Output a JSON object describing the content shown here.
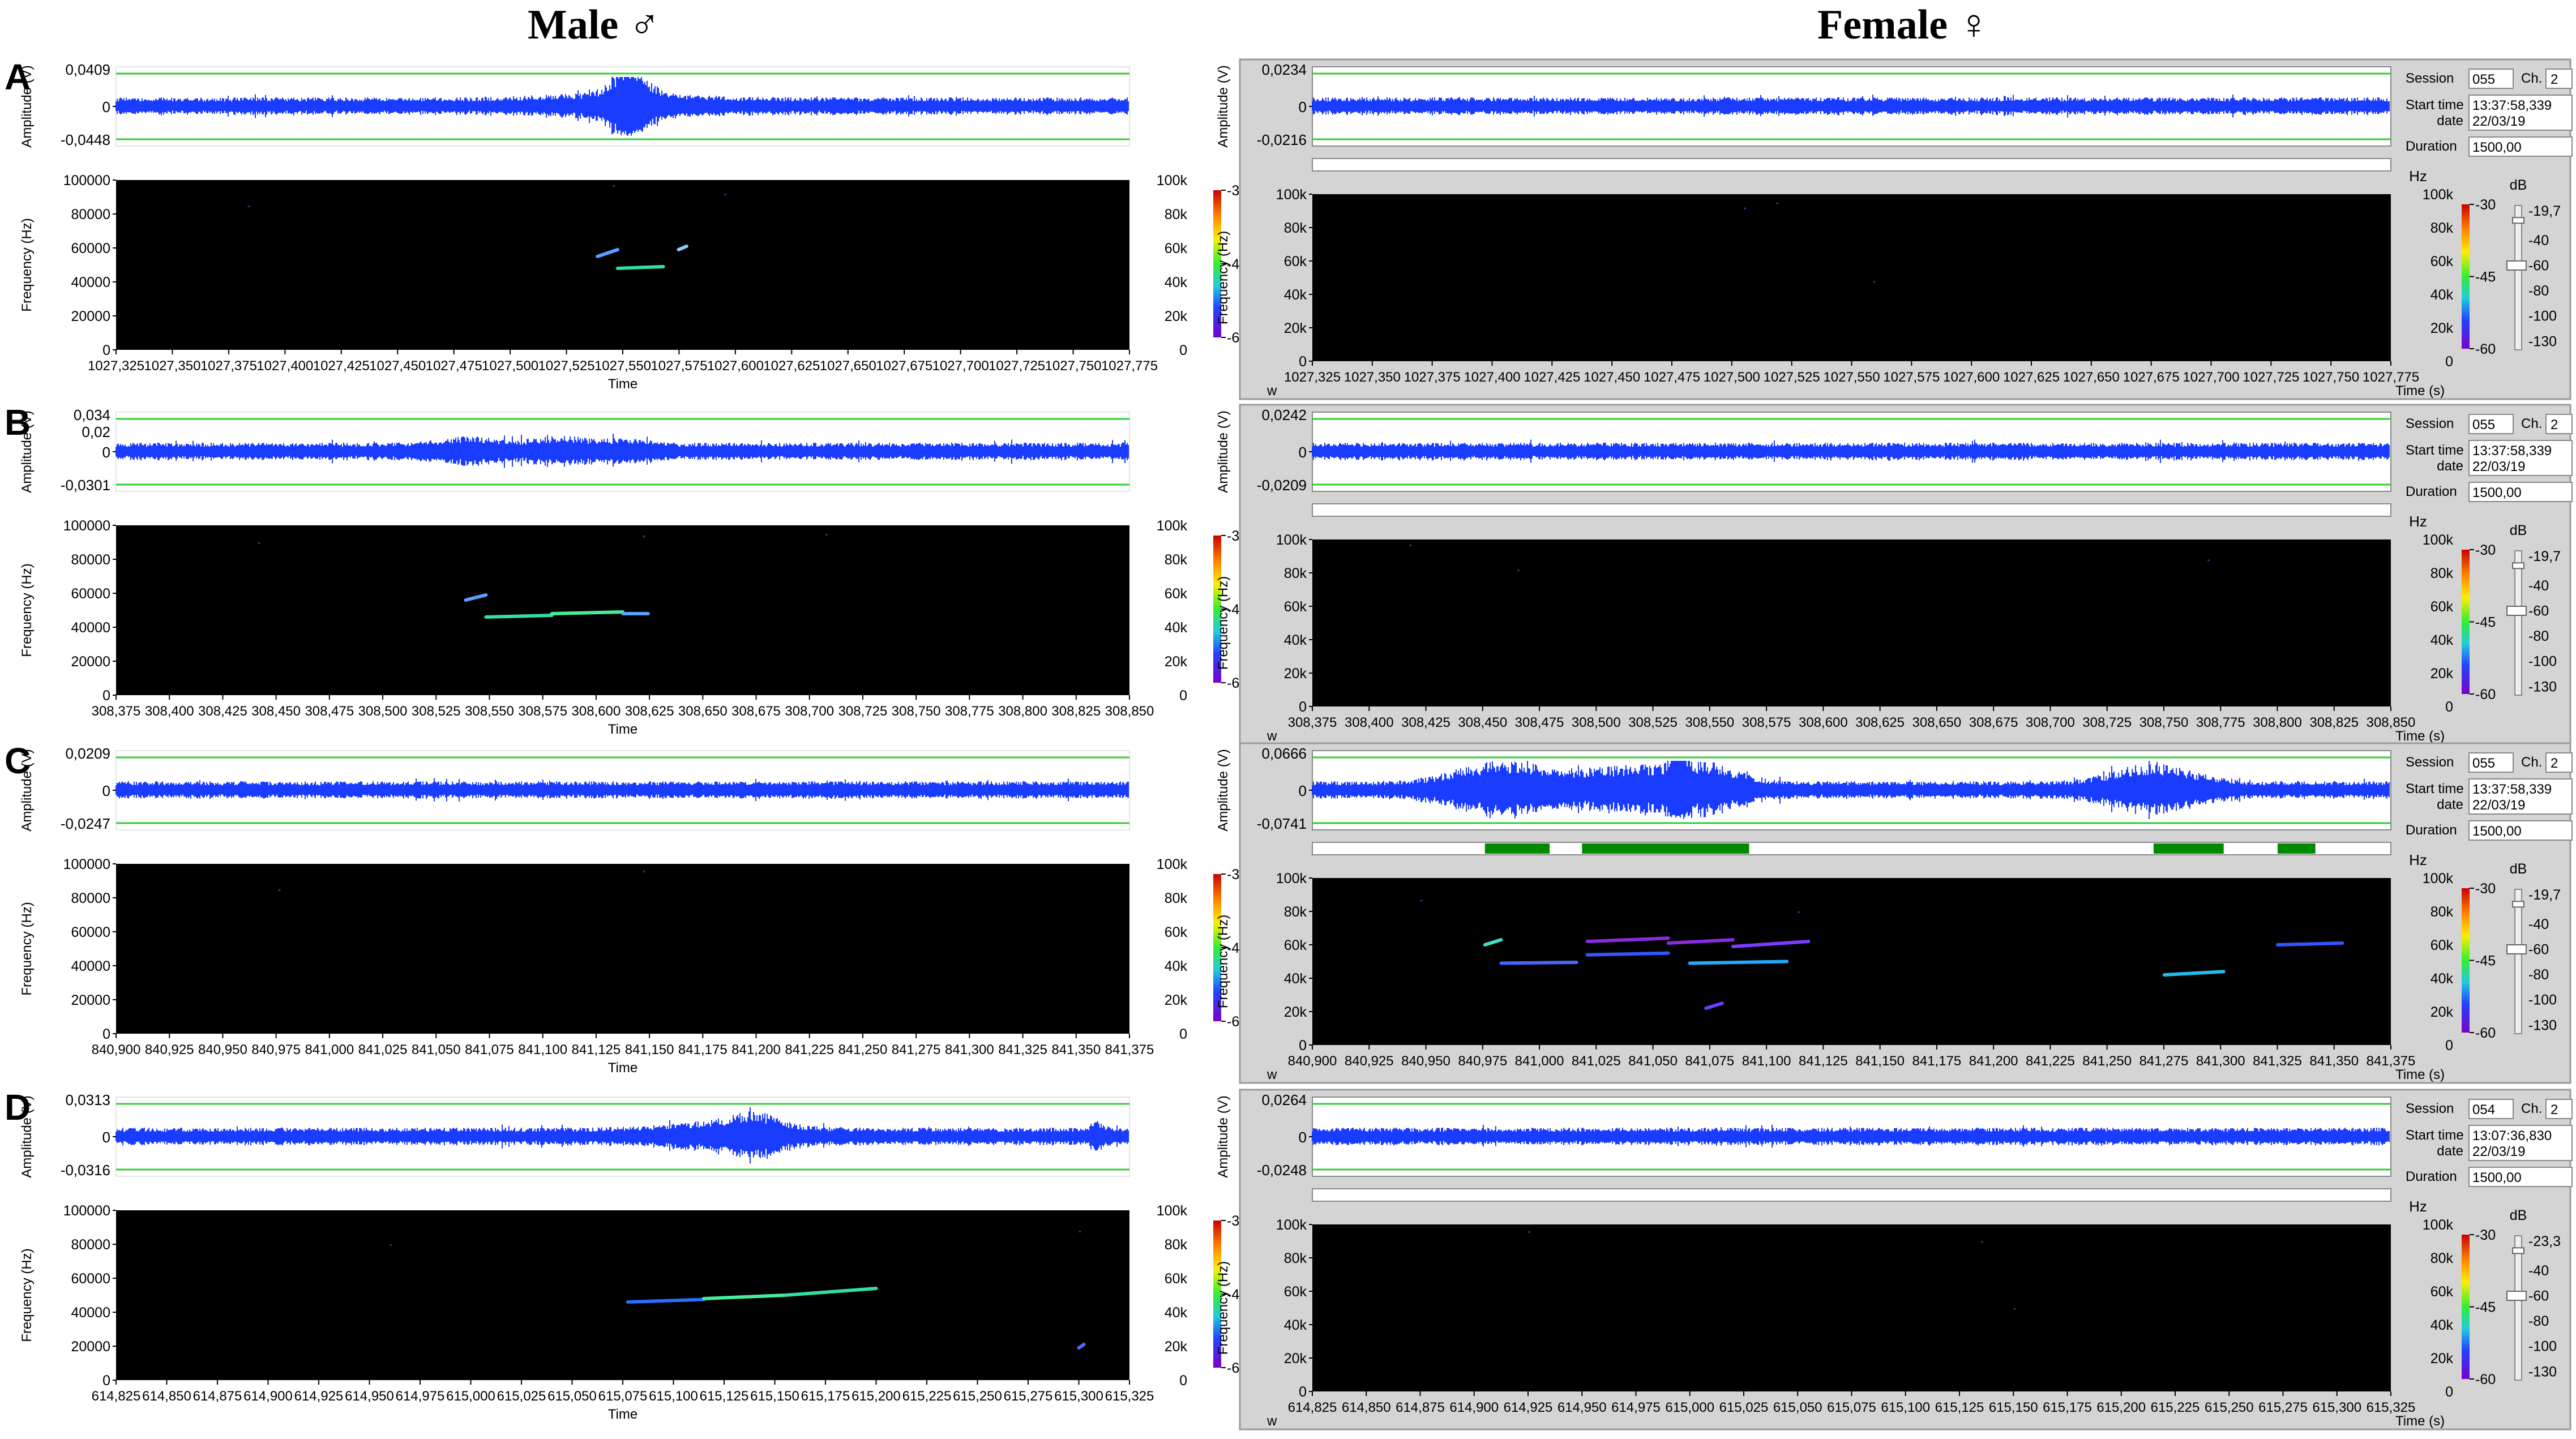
{
  "headers": {
    "male": "Male ♂",
    "female": "Female ♀"
  },
  "labels": {
    "amplitude": "Amplitude (V)",
    "frequency": "Frequency (Hz)",
    "time_male": "Time",
    "time_female": "Time (s)",
    "hz": "Hz",
    "db": "dB",
    "w": "w",
    "session": "Session",
    "ch": "Ch.",
    "start_time": "Start time",
    "date": "date",
    "duration": "Duration"
  },
  "colors": {
    "waveform": "#1a3cff",
    "threshold": "#33cc33",
    "spectrogram_bg": "#000000",
    "detection": "#008a00",
    "panel_bg": "#d4d4d4"
  },
  "rows": [
    {
      "letter": "A",
      "male": {
        "amp_top": "0,0409",
        "amp_bottom": "-0,0448",
        "wave_bursts": [
          [
            0.5,
            0.13,
            1.6
          ],
          [
            0.507,
            0.03,
            4.5
          ]
        ],
        "time_ticks": [
          "1027,325",
          "1027,350",
          "1027,375",
          "1027,400",
          "1027,425",
          "1027,450",
          "1027,475",
          "1027,500",
          "1027,525",
          "1027,550",
          "1027,575",
          "1027,600",
          "1027,625",
          "1027,650",
          "1027,675",
          "1027,700",
          "1027,725",
          "1027,750",
          "1027,775"
        ],
        "calls": [
          {
            "t": [
              0.475,
              0.495
            ],
            "f": [
              55000,
              59000
            ],
            "c": "#5aa0ff"
          },
          {
            "t": [
              0.495,
              0.54
            ],
            "f": [
              48000,
              49000
            ],
            "c": "#33ddaa"
          },
          {
            "t": [
              0.555,
              0.563
            ],
            "f": [
              59000,
              61000
            ],
            "c": "#88ccff"
          }
        ],
        "noise": [
          [
            0.13,
            85000
          ],
          [
            0.49,
            97000
          ],
          [
            0.6,
            92000
          ]
        ]
      },
      "female": {
        "amp_top": "0,0234",
        "amp_bottom": "-0,0216",
        "session": "055",
        "channel": "2",
        "start_time": "13:37:58,339",
        "date": "22/03/19",
        "duration": "1500,00",
        "db_top": "-19,7",
        "wave_bursts": [],
        "detections": [],
        "time_ticks": [
          "1027,325",
          "1027,350",
          "1027,375",
          "1027,400",
          "1027,425",
          "1027,450",
          "1027,475",
          "1027,500",
          "1027,525",
          "1027,550",
          "1027,575",
          "1027,600",
          "1027,625",
          "1027,650",
          "1027,675",
          "1027,700",
          "1027,725",
          "1027,750",
          "1027,775"
        ],
        "calls": [],
        "noise": [
          [
            0.4,
            92000
          ],
          [
            0.52,
            48000
          ],
          [
            0.43,
            95000
          ]
        ]
      }
    },
    {
      "letter": "B",
      "male": {
        "amp_top": "0,034",
        "amp_mid": "0,02",
        "amp_bottom": "-0,0301",
        "wave_bursts": [
          [
            0.35,
            0.06,
            1.7
          ],
          [
            0.44,
            0.05,
            1.8
          ],
          [
            0.5,
            0.04,
            1.5
          ]
        ],
        "time_ticks": [
          "308,375",
          "308,400",
          "308,425",
          "308,450",
          "308,475",
          "308,500",
          "308,525",
          "308,550",
          "308,575",
          "308,600",
          "308,625",
          "308,650",
          "308,675",
          "308,700",
          "308,725",
          "308,750",
          "308,775",
          "308,800",
          "308,825",
          "308,850"
        ],
        "calls": [
          {
            "t": [
              0.345,
              0.365
            ],
            "f": [
              56000,
              59000
            ],
            "c": "#5aa0ff"
          },
          {
            "t": [
              0.365,
              0.43
            ],
            "f": [
              46000,
              47000
            ],
            "c": "#33ddaa"
          },
          {
            "t": [
              0.43,
              0.5
            ],
            "f": [
              48000,
              49000
            ],
            "c": "#44ee99"
          },
          {
            "t": [
              0.5,
              0.525
            ],
            "f": [
              48000,
              48000
            ],
            "c": "#5aa0ff"
          }
        ],
        "noise": [
          [
            0.14,
            90000
          ],
          [
            0.52,
            94000
          ],
          [
            0.7,
            95000
          ]
        ]
      },
      "female": {
        "amp_top": "0,0242",
        "amp_bottom": "-0,0209",
        "session": "055",
        "channel": "2",
        "start_time": "13:37:58,339",
        "date": "22/03/19",
        "duration": "1500,00",
        "db_top": "-19,7",
        "wave_bursts": [],
        "detections": [],
        "time_ticks": [
          "308,375",
          "308,400",
          "308,425",
          "308,450",
          "308,475",
          "308,500",
          "308,525",
          "308,550",
          "308,575",
          "308,600",
          "308,625",
          "308,650",
          "308,675",
          "308,700",
          "308,725",
          "308,750",
          "308,775",
          "308,800",
          "308,825",
          "308,850"
        ],
        "calls": [],
        "noise": [
          [
            0.19,
            82000
          ],
          [
            0.83,
            88000
          ],
          [
            0.09,
            97000
          ]
        ]
      }
    },
    {
      "letter": "C",
      "male": {
        "amp_top": "0,0209",
        "amp_bottom": "-0,0247",
        "wave_bursts": [],
        "time_ticks": [
          "840,900",
          "840,925",
          "840,950",
          "840,975",
          "841,000",
          "841,025",
          "841,050",
          "841,075",
          "841,100",
          "841,125",
          "841,150",
          "841,175",
          "841,200",
          "841,225",
          "841,250",
          "841,275",
          "841,300",
          "841,325",
          "841,350",
          "841,375"
        ],
        "calls": [],
        "noise": [
          [
            0.16,
            85000
          ],
          [
            0.52,
            96000
          ]
        ]
      },
      "female": {
        "amp_top": "0,0666",
        "amp_bottom": "-0,0741",
        "session": "055",
        "channel": "2",
        "start_time": "13:37:58,339",
        "date": "22/03/19",
        "duration": "1500,00",
        "db_top": "-19,7",
        "wave_bursts": [
          [
            0.175,
            0.08,
            3.2
          ],
          [
            0.3,
            0.1,
            2.8
          ],
          [
            0.37,
            0.05,
            2.5
          ],
          [
            0.34,
            0.01,
            6.0
          ],
          [
            0.78,
            0.07,
            3.0
          ]
        ],
        "detections": [
          [
            0.16,
            0.22
          ],
          [
            0.25,
            0.405
          ],
          [
            0.78,
            0.845
          ],
          [
            0.895,
            0.93
          ]
        ],
        "time_ticks": [
          "840,900",
          "840,925",
          "840,950",
          "840,975",
          "841,000",
          "841,025",
          "841,050",
          "841,075",
          "841,100",
          "841,125",
          "841,150",
          "841,175",
          "841,200",
          "841,225",
          "841,250",
          "841,275",
          "841,300",
          "841,325",
          "841,350",
          "841,375"
        ],
        "calls": [
          {
            "t": [
              0.16,
              0.175
            ],
            "f": [
              60000,
              63000
            ],
            "c": "#44ddcc"
          },
          {
            "t": [
              0.175,
              0.245
            ],
            "f": [
              49000,
              49500
            ],
            "c": "#4466ff"
          },
          {
            "t": [
              0.255,
              0.33
            ],
            "f": [
              62000,
              64000
            ],
            "c": "#8a2be2"
          },
          {
            "t": [
              0.33,
              0.39
            ],
            "f": [
              61000,
              63000
            ],
            "c": "#8a2be2"
          },
          {
            "t": [
              0.39,
              0.46
            ],
            "f": [
              59000,
              62000
            ],
            "c": "#7b3bff"
          },
          {
            "t": [
              0.255,
              0.33
            ],
            "f": [
              54000,
              55000
            ],
            "c": "#3355ff"
          },
          {
            "t": [
              0.35,
              0.44
            ],
            "f": [
              49000,
              50000
            ],
            "c": "#22aaff"
          },
          {
            "t": [
              0.365,
              0.38
            ],
            "f": [
              22000,
              25000
            ],
            "c": "#6a3dff"
          },
          {
            "t": [
              0.79,
              0.845
            ],
            "f": [
              42000,
              44000
            ],
            "c": "#22bbee"
          },
          {
            "t": [
              0.895,
              0.955
            ],
            "f": [
              60000,
              61000
            ],
            "c": "#3355ff"
          }
        ],
        "noise": [
          [
            0.1,
            87000
          ],
          [
            0.45,
            80000
          ]
        ]
      }
    },
    {
      "letter": "D",
      "male": {
        "amp_top": "0,0313",
        "amp_bottom": "-0,0316",
        "wave_bursts": [
          [
            0.6,
            0.1,
            1.8
          ],
          [
            0.63,
            0.04,
            2.2
          ],
          [
            0.97,
            0.01,
            1.8
          ]
        ],
        "time_ticks": [
          "614,825",
          "614,850",
          "614,875",
          "614,900",
          "614,925",
          "614,950",
          "614,975",
          "615,000",
          "615,025",
          "615,050",
          "615,075",
          "615,100",
          "615,125",
          "615,150",
          "615,175",
          "615,200",
          "615,225",
          "615,250",
          "615,275",
          "615,300",
          "615,325"
        ],
        "calls": [
          {
            "t": [
              0.505,
              0.58
            ],
            "f": [
              46000,
              47500
            ],
            "c": "#2a6dff"
          },
          {
            "t": [
              0.58,
              0.66
            ],
            "f": [
              48000,
              50000
            ],
            "c": "#44ee99"
          },
          {
            "t": [
              0.66,
              0.75
            ],
            "f": [
              50000,
              54000
            ],
            "c": "#33ddaa"
          },
          {
            "t": [
              0.95,
              0.955
            ],
            "f": [
              19000,
              21000
            ],
            "c": "#5566ff"
          }
        ],
        "noise": [
          [
            0.27,
            80000
          ],
          [
            0.95,
            88000
          ]
        ]
      },
      "female": {
        "amp_top": "0,0264",
        "amp_bottom": "-0,0248",
        "session": "054",
        "channel": "2",
        "start_time": "13:07:36,830",
        "date": "22/03/19",
        "duration": "1500,00",
        "db_top": "-23,3",
        "wave_bursts": [],
        "detections": [],
        "time_ticks": [
          "614,825",
          "614,850",
          "614,875",
          "614,900",
          "614,925",
          "614,950",
          "614,975",
          "615,000",
          "615,025",
          "615,050",
          "615,075",
          "615,100",
          "615,125",
          "615,150",
          "615,175",
          "615,200",
          "615,225",
          "615,250",
          "615,275",
          "615,300",
          "615,325"
        ],
        "calls": [],
        "noise": [
          [
            0.2,
            96000
          ],
          [
            0.62,
            90000
          ],
          [
            0.65,
            50000
          ]
        ]
      }
    }
  ],
  "male_freq_ticks": [
    "0",
    "20000",
    "40000",
    "60000",
    "80000",
    "100000"
  ],
  "female_freq_ticks": [
    "0",
    "20k",
    "40k",
    "60k",
    "80k",
    "100k"
  ],
  "right_freq_ticks": [
    "0",
    "20k",
    "40k",
    "60k",
    "80k",
    "100k"
  ],
  "colorbar_ticks": [
    "-30",
    "-45",
    "-60"
  ],
  "db_ticks": [
    "-40",
    "-60",
    "-80",
    "-100",
    "-130"
  ]
}
